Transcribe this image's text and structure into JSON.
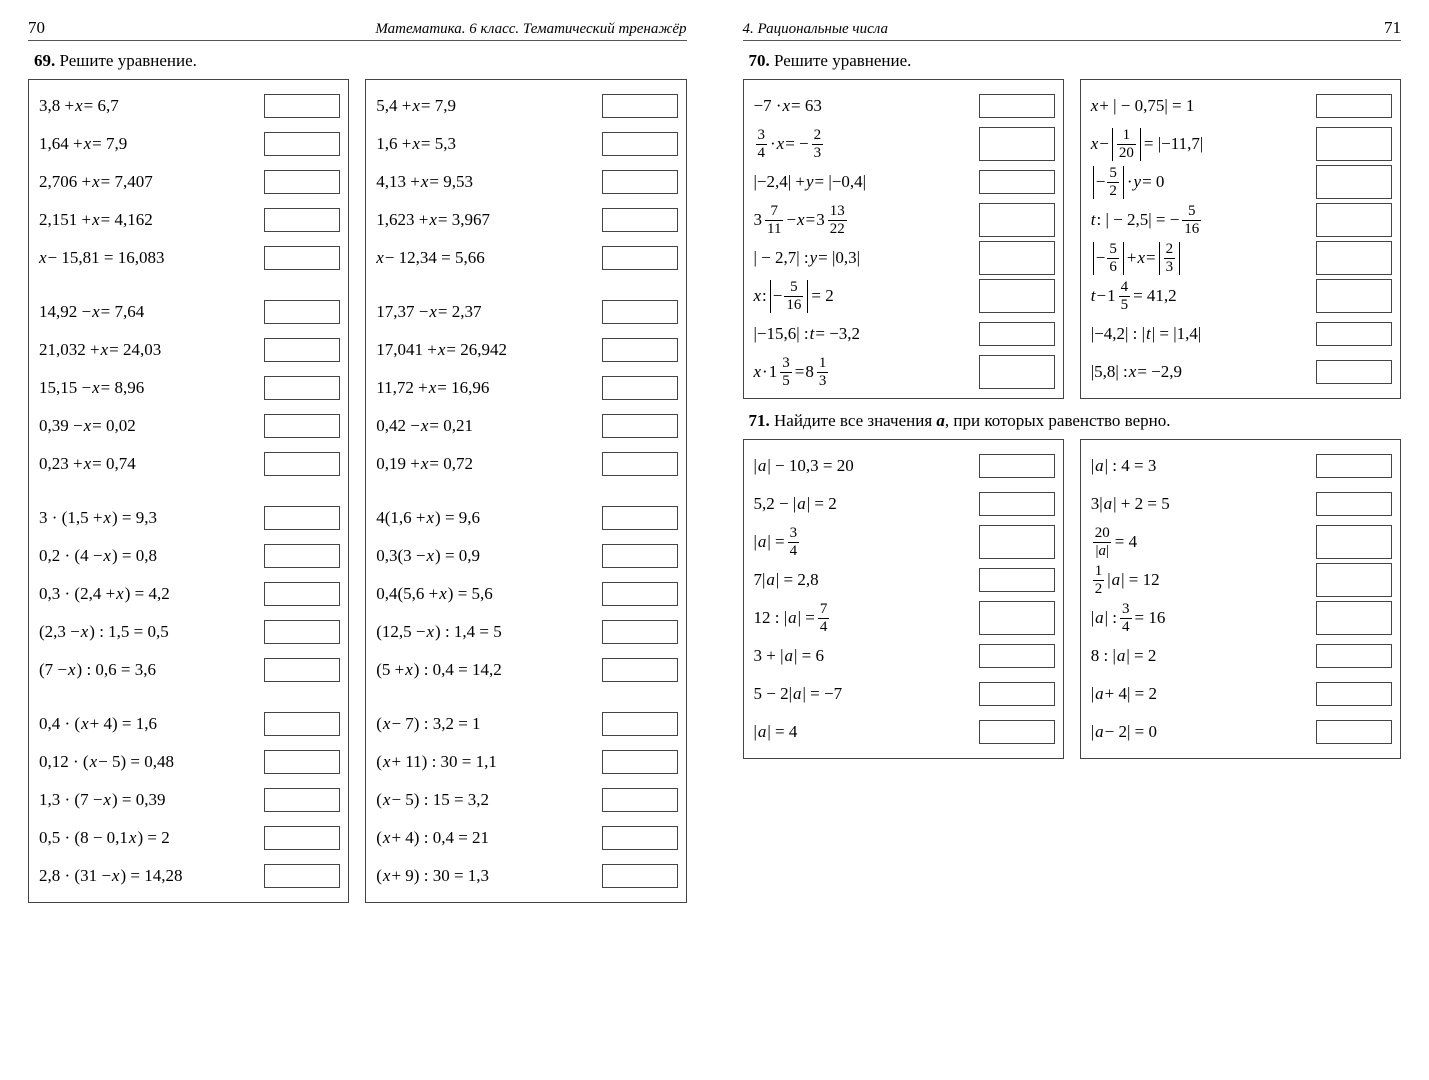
{
  "left": {
    "page_number": "70",
    "header": "Математика. 6 класс. Тематический тренажёр",
    "task69_num": "69.",
    "task69_text": "Решите уравнение.",
    "colA": [
      "3,8 + x = 6,7",
      "1,64 + x = 7,9",
      "2,706 + x = 7,407",
      "2,151 + x = 4,162",
      "x − 15,81 = 16,083",
      "",
      "14,92 − x = 7,64",
      "21,032 + x = 24,03",
      "15,15 − x = 8,96",
      "0,39 − x = 0,02",
      "0,23 + x = 0,74",
      "",
      "3 · (1,5 + x) = 9,3",
      "0,2 · (4 − x) = 0,8",
      "0,3 · (2,4 + x) = 4,2",
      "(2,3 − x) : 1,5 = 0,5",
      "(7 − x) : 0,6 = 3,6",
      "",
      "0,4 · (x + 4) = 1,6",
      "0,12 · (x − 5) = 0,48",
      "1,3 · (7 − x) = 0,39",
      "0,5 · (8 − 0,1x) = 2",
      "2,8 · (31 − x) = 14,28"
    ],
    "colB": [
      "5,4 + x = 7,9",
      "1,6 + x = 5,3",
      "4,13 + x = 9,53",
      "1,623 + x = 3,967",
      "x − 12,34 = 5,66",
      "",
      "17,37 − x = 2,37",
      "17,041 + x = 26,942",
      "11,72 + x = 16,96",
      "0,42 − x = 0,21",
      "0,19 + x = 0,72",
      "",
      "4(1,6 + x) = 9,6",
      "0,3(3 − x) = 0,9",
      "0,4(5,6 + x) = 5,6",
      "(12,5 − x) : 1,4 = 5",
      "(5 + x) : 0,4 = 14,2",
      "",
      "(x − 7) : 3,2 = 1",
      "(x + 11) : 30 = 1,1",
      "(x − 5) : 15 = 3,2",
      "(x + 4) : 0,4 = 21",
      "(x + 9) : 30 = 1,3"
    ]
  },
  "right": {
    "page_number": "71",
    "header": "4. Рациональные числа",
    "task70_num": "70.",
    "task70_text": "Решите уравнение.",
    "task71_num": "71.",
    "task71_text_1": "Найдите все значения ",
    "task71_text_var": "a",
    "task71_text_2": ", при которых равенство верно.",
    "t70A": {
      "r0": "−7 · x = 63",
      "r2_pre": "|−2,4| + y = |−0,4|",
      "r4": "| − 2,7| : y = |0,3|",
      "r6": "|−15,6| : t = −3,2"
    },
    "t70B": {
      "r0": "x + | − 0,75| = 1",
      "r6": "|−4,2| : |t| = |1,4|",
      "r7": "|5,8| : x = −2,9"
    },
    "t71A": [
      "|a| − 10,3 = 20",
      "5,2 − |a| = 2",
      "FRAC:|a| = 3/4",
      "7|a| = 2,8",
      "FRAC:12 : |a| = 7/4",
      "3 + |a| = 6",
      "5 − 2|a| = −7",
      "|a| = 4"
    ],
    "t71B": [
      "|a| : 4 = 3",
      "3|a| + 2 = 5",
      "FRAC:20/|a| = 4",
      "FRAC:1/2 |a| = 12",
      "FRAC:|a| : 3/4 = 16",
      "8 : |a| = 2",
      "|a + 4| = 2",
      "|a − 2| = 0"
    ]
  }
}
